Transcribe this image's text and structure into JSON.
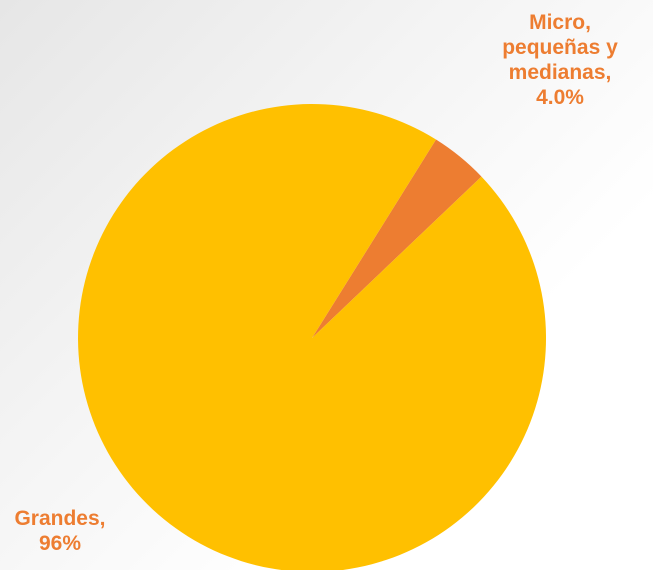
{
  "chart_data": {
    "type": "pie",
    "title": "",
    "slices": [
      {
        "name": "Micro, pequeñas y medianas",
        "value": 4.0,
        "color": "#ED7D31",
        "label_lines": [
          "Micro,",
          "pequeñas y",
          "medianas,",
          "4.0%"
        ]
      },
      {
        "name": "Grandes",
        "value": 96,
        "color": "#FFC000",
        "label_lines": [
          "Grandes,",
          "96%"
        ]
      }
    ],
    "label_color": "#ED7D31",
    "start_slice_position": "clockwise from upper-right"
  }
}
